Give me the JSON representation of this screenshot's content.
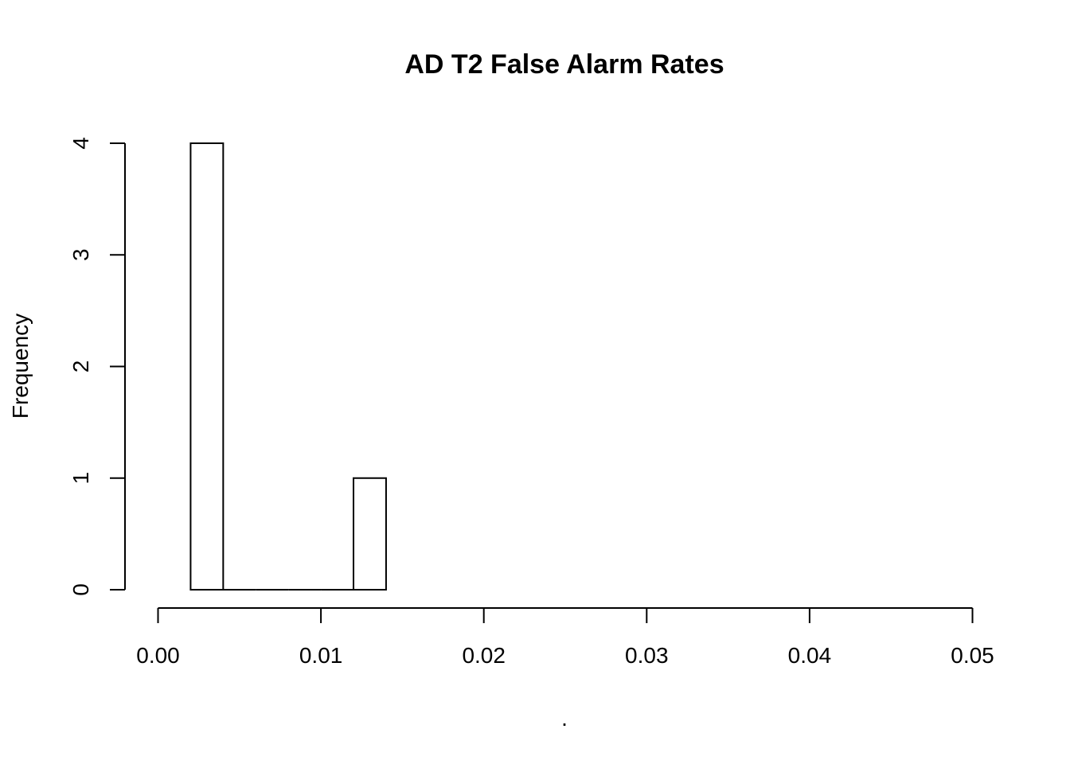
{
  "chart_data": {
    "type": "bar",
    "title": "AD T2 False Alarm Rates",
    "xlabel": ".",
    "ylabel": "Frequency",
    "xlim": [
      0,
      0.05
    ],
    "ylim": [
      0,
      4
    ],
    "x_ticks": [
      "0.00",
      "0.01",
      "0.02",
      "0.03",
      "0.04",
      "0.05"
    ],
    "y_ticks": [
      "0",
      "1",
      "2",
      "3",
      "4"
    ],
    "bins": [
      {
        "start": 0.002,
        "end": 0.004,
        "count": 4
      },
      {
        "start": 0.004,
        "end": 0.006,
        "count": 0
      },
      {
        "start": 0.006,
        "end": 0.008,
        "count": 0
      },
      {
        "start": 0.008,
        "end": 0.01,
        "count": 0
      },
      {
        "start": 0.01,
        "end": 0.012,
        "count": 0
      },
      {
        "start": 0.012,
        "end": 0.014,
        "count": 1
      }
    ],
    "grid": false,
    "bar_fill": "#ffffff",
    "bar_stroke": "#000000"
  }
}
